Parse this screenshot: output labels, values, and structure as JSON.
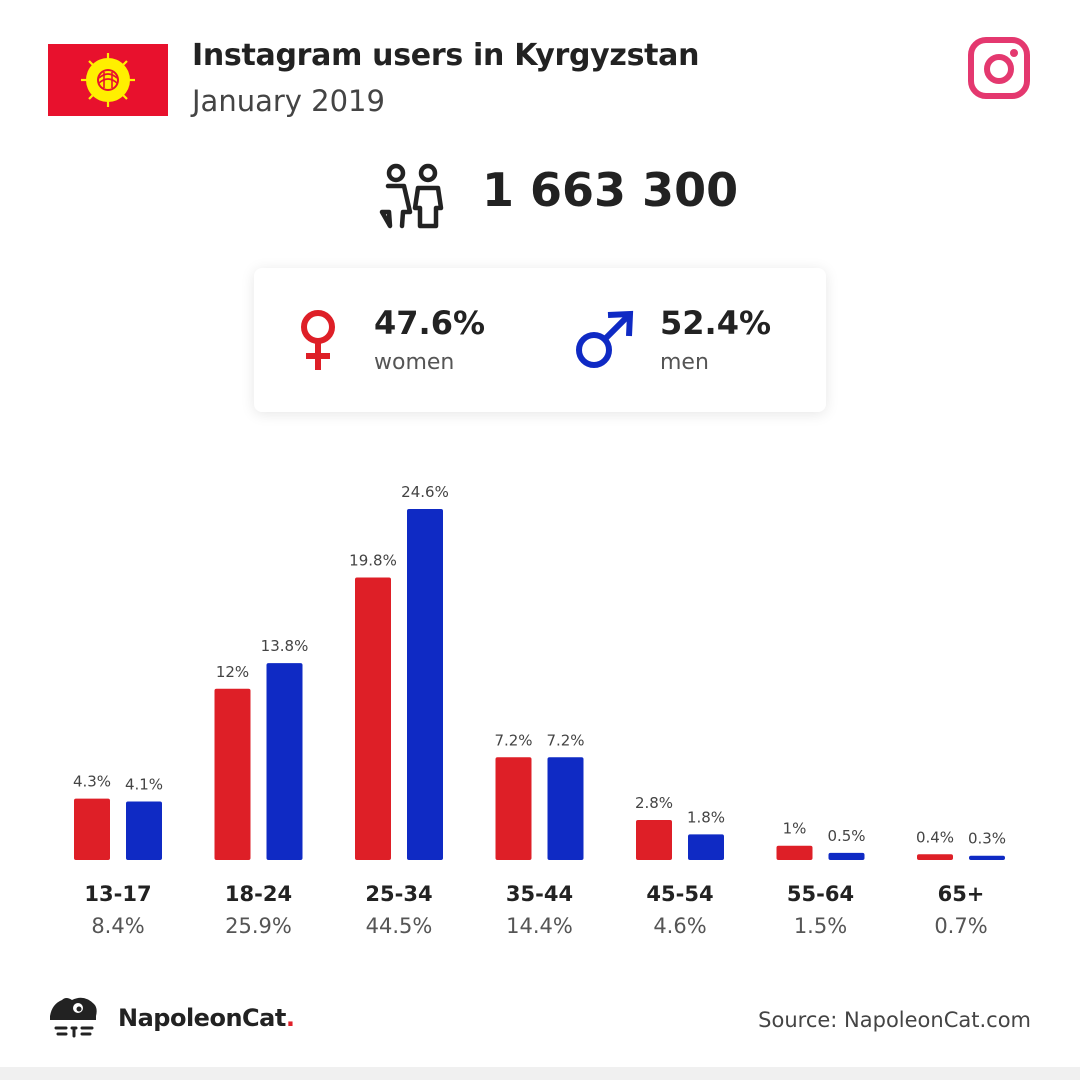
{
  "header": {
    "title": "Instagram users in Kyrgyzstan",
    "subtitle": "January 2019"
  },
  "icons": {
    "flag": "kyrgyzstan-flag",
    "platform": "instagram-icon",
    "users": "people-icon",
    "female": "female-symbol-icon",
    "male": "male-symbol-icon",
    "brand": "napoleoncat-logo"
  },
  "summary": {
    "total_users": "1 663 300",
    "women_pct": "47.6%",
    "women_label": "women",
    "men_pct": "52.4%",
    "men_label": "men"
  },
  "colors": {
    "women": "#de1f27",
    "men": "#0f2ac4",
    "instagram": "#e4386f",
    "flag_red": "#e8112d",
    "flag_sun": "#ffef00"
  },
  "chart_data": {
    "type": "bar",
    "categories": [
      "13-17",
      "18-24",
      "25-34",
      "35-44",
      "45-54",
      "55-64",
      "65+"
    ],
    "category_totals": [
      "8.4%",
      "25.9%",
      "44.5%",
      "14.4%",
      "4.6%",
      "1.5%",
      "0.7%"
    ],
    "series": [
      {
        "name": "women",
        "color": "#de1f27",
        "values": [
          4.3,
          12,
          19.8,
          7.2,
          2.8,
          1,
          0.4
        ],
        "labels": [
          "4.3%",
          "12%",
          "19.8%",
          "7.2%",
          "2.8%",
          "1%",
          "0.4%"
        ]
      },
      {
        "name": "men",
        "color": "#0f2ac4",
        "values": [
          4.1,
          13.8,
          24.6,
          7.2,
          1.8,
          0.5,
          0.3
        ],
        "labels": [
          "4.1%",
          "13.8%",
          "24.6%",
          "7.2%",
          "1.8%",
          "0.5%",
          "0.3%"
        ]
      }
    ],
    "ylim": [
      0,
      24.6
    ],
    "grid": false,
    "legend": "none"
  },
  "footer": {
    "brand_name": "NapoleonCat",
    "brand_dot": ".",
    "source": "Source: NapoleonCat.com"
  }
}
